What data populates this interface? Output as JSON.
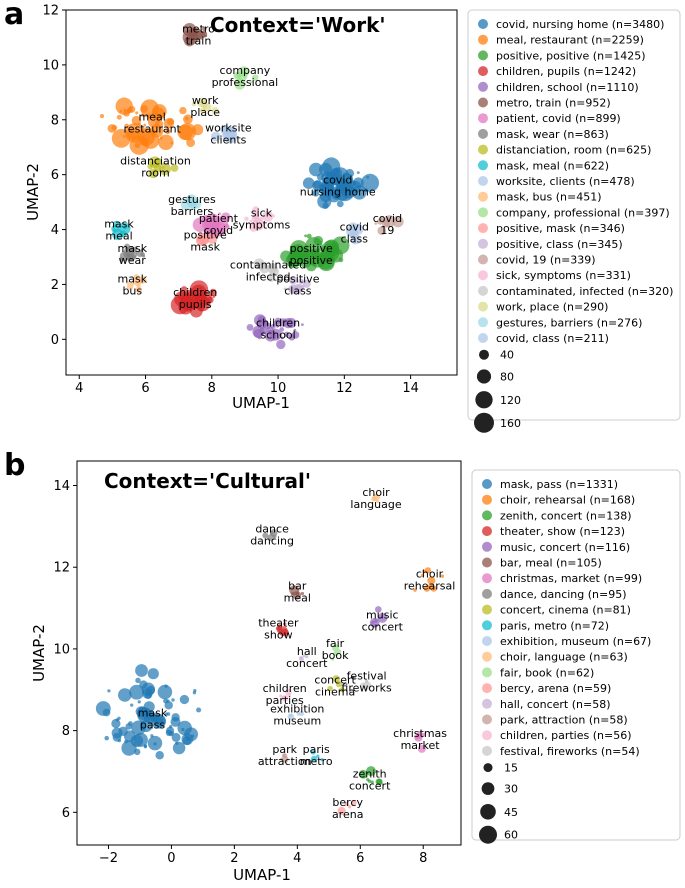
{
  "chart_data": [
    {
      "type": "scatter",
      "panel": "a",
      "title": "Context='Work'",
      "xlabel": "UMAP-1",
      "ylabel": "UMAP-2",
      "xlim": [
        3.6,
        15.4
      ],
      "ylim": [
        -1.3,
        12
      ],
      "xticks": [
        4,
        6,
        8,
        10,
        12,
        14
      ],
      "yticks": [
        0,
        2,
        4,
        6,
        8,
        10,
        12
      ],
      "legend": [
        {
          "label": "covid, nursing home (n=3480)",
          "color": "#1f77b4"
        },
        {
          "label": "meal, restaurant (n=2259)",
          "color": "#ff7f0e"
        },
        {
          "label": "positive, positive (n=1425)",
          "color": "#2ca02c"
        },
        {
          "label": "children, pupils (n=1242)",
          "color": "#d62728"
        },
        {
          "label": "children, school (n=1110)",
          "color": "#9467bd"
        },
        {
          "label": "metro, train (n=952)",
          "color": "#8c564b"
        },
        {
          "label": "patient, covid (n=899)",
          "color": "#e377c2"
        },
        {
          "label": "mask, wear (n=863)",
          "color": "#7f7f7f"
        },
        {
          "label": "distanciation, room (n=625)",
          "color": "#bcbd22"
        },
        {
          "label": "mask, meal (n=622)",
          "color": "#17becf"
        },
        {
          "label": "worksite, clients (n=478)",
          "color": "#aec7e8"
        },
        {
          "label": "mask, bus (n=451)",
          "color": "#ffbb78"
        },
        {
          "label": "company, professional (n=397)",
          "color": "#98df8a"
        },
        {
          "label": "positive, mask (n=346)",
          "color": "#ff9896"
        },
        {
          "label": "positive, class (n=345)",
          "color": "#c5b0d5"
        },
        {
          "label": "covid, 19 (n=339)",
          "color": "#c49c94"
        },
        {
          "label": "sick, symptoms (n=331)",
          "color": "#f7b6d2"
        },
        {
          "label": "contaminated, infected (n=320)",
          "color": "#c7c7c7"
        },
        {
          "label": "work, place (n=290)",
          "color": "#dbdb8d"
        },
        {
          "label": "gestures, barriers (n=276)",
          "color": "#9edae5"
        },
        {
          "label": "covid, class (n=211)",
          "color": "#aec7e8"
        }
      ],
      "size_legend": [
        40,
        80,
        120,
        160
      ],
      "size_max": 160,
      "clusters": [
        {
          "label": "covid\nnursing home",
          "x": 11.8,
          "y": 5.6,
          "color": "#1f77b4",
          "spread": 1.2,
          "count": 60,
          "big": 150
        },
        {
          "label": "meal\nrestaurant",
          "x": 6.2,
          "y": 7.9,
          "color": "#ff7f0e",
          "spread": 1.6,
          "count": 50,
          "big": 160
        },
        {
          "label": "positive\npositive",
          "x": 11.0,
          "y": 3.1,
          "color": "#2ca02c",
          "spread": 1.0,
          "count": 35,
          "big": 140
        },
        {
          "label": "children\npupils",
          "x": 7.5,
          "y": 1.5,
          "color": "#d62728",
          "spread": 0.8,
          "count": 30,
          "big": 150
        },
        {
          "label": "children\nschool",
          "x": 10.0,
          "y": 0.4,
          "color": "#9467bd",
          "spread": 1.0,
          "count": 30,
          "big": 80
        },
        {
          "label": "metro\ntrain",
          "x": 7.6,
          "y": 11.1,
          "color": "#8c564b",
          "spread": 0.5,
          "count": 12,
          "big": 100
        },
        {
          "label": "patient\ncovid",
          "x": 8.2,
          "y": 4.2,
          "color": "#e377c2",
          "spread": 0.6,
          "count": 20,
          "big": 110
        },
        {
          "label": "mask\nwear",
          "x": 5.6,
          "y": 3.1,
          "color": "#7f7f7f",
          "spread": 0.6,
          "count": 15,
          "big": 90
        },
        {
          "label": "distanciation\nroom",
          "x": 6.3,
          "y": 6.3,
          "color": "#bcbd22",
          "spread": 0.6,
          "count": 12,
          "big": 70
        },
        {
          "label": "mask\nmeal",
          "x": 5.2,
          "y": 4.0,
          "color": "#17becf",
          "spread": 0.4,
          "count": 8,
          "big": 70
        },
        {
          "label": "worksite\nclients",
          "x": 8.5,
          "y": 7.5,
          "color": "#aec7e8",
          "spread": 0.5,
          "count": 10,
          "big": 90
        },
        {
          "label": "mask\nbus",
          "x": 5.6,
          "y": 2.0,
          "color": "#ffbb78",
          "spread": 0.4,
          "count": 8,
          "big": 70
        },
        {
          "label": "company\nprofessional",
          "x": 9.0,
          "y": 9.6,
          "color": "#98df8a",
          "spread": 0.6,
          "count": 10,
          "big": 60
        },
        {
          "label": "positive\nmask",
          "x": 7.8,
          "y": 3.6,
          "color": "#ff9896",
          "spread": 0.4,
          "count": 8,
          "big": 60
        },
        {
          "label": "positive\nclass",
          "x": 10.6,
          "y": 2.0,
          "color": "#c5b0d5",
          "spread": 0.6,
          "count": 10,
          "big": 60
        },
        {
          "label": "covid\n19",
          "x": 13.3,
          "y": 4.2,
          "color": "#c49c94",
          "spread": 0.5,
          "count": 8,
          "big": 60
        },
        {
          "label": "sick\nsymptoms",
          "x": 9.5,
          "y": 4.4,
          "color": "#f7b6d2",
          "spread": 0.6,
          "count": 10,
          "big": 70
        },
        {
          "label": "contaminated\ninfected",
          "x": 9.7,
          "y": 2.5,
          "color": "#c7c7c7",
          "spread": 0.6,
          "count": 10,
          "big": 60
        },
        {
          "label": "work\nplace",
          "x": 7.8,
          "y": 8.5,
          "color": "#dbdb8d",
          "spread": 0.5,
          "count": 8,
          "big": 60
        },
        {
          "label": "gestures\nbarriers",
          "x": 7.4,
          "y": 4.9,
          "color": "#9edae5",
          "spread": 0.4,
          "count": 8,
          "big": 60
        },
        {
          "label": "covid\nclass",
          "x": 12.3,
          "y": 3.9,
          "color": "#aec7e8",
          "spread": 0.4,
          "count": 8,
          "big": 60
        }
      ]
    },
    {
      "type": "scatter",
      "panel": "b",
      "title": "Context='Cultural'",
      "xlabel": "UMAP-1",
      "ylabel": "UMAP-2",
      "xlim": [
        -3,
        9.2
      ],
      "ylim": [
        5.2,
        14.6
      ],
      "xticks": [
        -2,
        0,
        2,
        4,
        6,
        8
      ],
      "yticks": [
        6,
        8,
        10,
        12,
        14
      ],
      "legend": [
        {
          "label": "mask, pass (n=1331)",
          "color": "#1f77b4"
        },
        {
          "label": "choir, rehearsal (n=168)",
          "color": "#ff7f0e"
        },
        {
          "label": "zenith, concert (n=138)",
          "color": "#2ca02c"
        },
        {
          "label": "theater, show (n=123)",
          "color": "#d62728"
        },
        {
          "label": "music, concert (n=116)",
          "color": "#9467bd"
        },
        {
          "label": "bar, meal (n=105)",
          "color": "#8c564b"
        },
        {
          "label": "christmas, market (n=99)",
          "color": "#e377c2"
        },
        {
          "label": "dance, dancing (n=95)",
          "color": "#7f7f7f"
        },
        {
          "label": "concert, cinema (n=81)",
          "color": "#bcbd22"
        },
        {
          "label": "paris, metro (n=72)",
          "color": "#17becf"
        },
        {
          "label": "exhibition, museum (n=67)",
          "color": "#aec7e8"
        },
        {
          "label": "choir, language (n=63)",
          "color": "#ffbb78"
        },
        {
          "label": "fair, book (n=62)",
          "color": "#98df8a"
        },
        {
          "label": "bercy, arena (n=59)",
          "color": "#ff9896"
        },
        {
          "label": "hall, concert (n=58)",
          "color": "#c5b0d5"
        },
        {
          "label": "park, attraction (n=58)",
          "color": "#c49c94"
        },
        {
          "label": "children, parties (n=56)",
          "color": "#f7b6d2"
        },
        {
          "label": "festival, fireworks (n=54)",
          "color": "#c7c7c7"
        }
      ],
      "size_legend": [
        15,
        30,
        45,
        60
      ],
      "size_max": 60,
      "clusters": [
        {
          "label": "mask\npass",
          "x": -0.6,
          "y": 8.3,
          "color": "#1f77b4",
          "spread": 1.9,
          "count": 80,
          "big": 45
        },
        {
          "label": "choir\nrehearsal",
          "x": 8.2,
          "y": 11.7,
          "color": "#ff7f0e",
          "spread": 0.6,
          "count": 10,
          "big": 30
        },
        {
          "label": "zenith\nconcert",
          "x": 6.3,
          "y": 6.8,
          "color": "#2ca02c",
          "spread": 0.4,
          "count": 8,
          "big": 30
        },
        {
          "label": "theater\nshow",
          "x": 3.4,
          "y": 10.5,
          "color": "#d62728",
          "spread": 0.3,
          "count": 6,
          "big": 25
        },
        {
          "label": "music\nconcert",
          "x": 6.7,
          "y": 10.7,
          "color": "#9467bd",
          "spread": 0.5,
          "count": 6,
          "big": 20
        },
        {
          "label": "bar\nmeal",
          "x": 4.0,
          "y": 11.4,
          "color": "#8c564b",
          "spread": 0.3,
          "count": 5,
          "big": 20
        },
        {
          "label": "christmas\nmarket",
          "x": 7.9,
          "y": 7.8,
          "color": "#e377c2",
          "spread": 0.4,
          "count": 5,
          "big": 20
        },
        {
          "label": "dance\ndancing",
          "x": 3.2,
          "y": 12.8,
          "color": "#7f7f7f",
          "spread": 0.3,
          "count": 5,
          "big": 20
        },
        {
          "label": "concert\ncinema",
          "x": 5.2,
          "y": 9.1,
          "color": "#bcbd22",
          "spread": 0.3,
          "count": 4,
          "big": 15
        },
        {
          "label": "paris\nmetro",
          "x": 4.6,
          "y": 7.4,
          "color": "#17becf",
          "spread": 0.3,
          "count": 4,
          "big": 20
        },
        {
          "label": "exhibition\nmuseum",
          "x": 4.0,
          "y": 8.4,
          "color": "#aec7e8",
          "spread": 0.3,
          "count": 4,
          "big": 20
        },
        {
          "label": "choir\nlanguage",
          "x": 6.5,
          "y": 13.7,
          "color": "#ffbb78",
          "spread": 0.2,
          "count": 3,
          "big": 20
        },
        {
          "label": "fair\nbook",
          "x": 5.2,
          "y": 10.0,
          "color": "#98df8a",
          "spread": 0.4,
          "count": 4,
          "big": 15
        },
        {
          "label": "bercy\narena",
          "x": 5.6,
          "y": 6.1,
          "color": "#ff9896",
          "spread": 0.3,
          "count": 4,
          "big": 20
        },
        {
          "label": "hall\nconcert",
          "x": 4.3,
          "y": 9.8,
          "color": "#c5b0d5",
          "spread": 0.3,
          "count": 4,
          "big": 15
        },
        {
          "label": "park\nattraction",
          "x": 3.6,
          "y": 7.4,
          "color": "#c49c94",
          "spread": 0.3,
          "count": 4,
          "big": 15
        },
        {
          "label": "children\nparties",
          "x": 3.6,
          "y": 8.9,
          "color": "#f7b6d2",
          "spread": 0.5,
          "count": 5,
          "big": 15
        },
        {
          "label": "festival\nfireworks",
          "x": 6.2,
          "y": 9.2,
          "color": "#c7c7c7",
          "spread": 0.4,
          "count": 4,
          "big": 15
        }
      ]
    }
  ]
}
